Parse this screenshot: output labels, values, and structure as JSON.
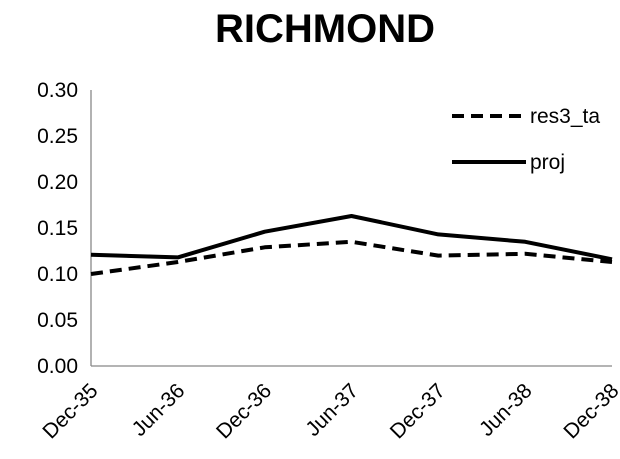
{
  "chart_data": {
    "type": "line",
    "title": "RICHMOND",
    "xlabel": "",
    "ylabel": "",
    "categories": [
      "Dec-35",
      "Jun-36",
      "Dec-36",
      "Jun-37",
      "Dec-37",
      "Jun-38",
      "Dec-38"
    ],
    "ylim": [
      0,
      0.3
    ],
    "yticks": [
      "0.00",
      "0.05",
      "0.10",
      "0.15",
      "0.20",
      "0.25",
      "0.30"
    ],
    "grid": false,
    "legend_position": "top-right",
    "series": [
      {
        "name": "res3_ta",
        "style": "dashed",
        "color": "#000000",
        "values": [
          0.1,
          0.113,
          0.129,
          0.135,
          0.12,
          0.122,
          0.113
        ]
      },
      {
        "name": "proj",
        "style": "solid",
        "color": "#000000",
        "values": [
          0.121,
          0.118,
          0.146,
          0.163,
          0.143,
          0.135,
          0.116
        ]
      }
    ]
  }
}
